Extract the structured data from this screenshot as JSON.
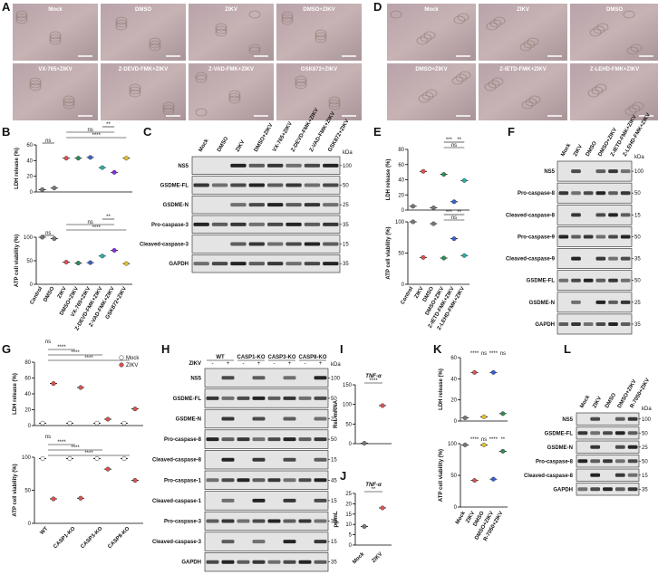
{
  "letters": [
    "A",
    "B",
    "C",
    "D",
    "E",
    "F",
    "G",
    "H",
    "I",
    "J",
    "K",
    "L"
  ],
  "images": {
    "A": [
      "Mock",
      "DMSO",
      "ZIKV",
      "DMSO+ZIKV",
      "VX-765+ZIKV",
      "Z-DEVD-FMK+ZIKV",
      "Z-VAD-FMK+ZIKV",
      "GSK872+ZIKV"
    ],
    "D": [
      "Mock",
      "ZIKV",
      "DMSO",
      "DMSO+ZIKV",
      "Z-IETD-FMK+ZIKV",
      "Z-LEHD-FMK+ZIKV"
    ]
  },
  "chart_data": [
    {
      "type": "dot",
      "categories": [
        "Control",
        "DMSO",
        "ZIKV",
        "DMSO+ZIKV",
        "VX-765+ZIKV",
        "Z-DEVD-FMK+ZIKV",
        "Z-VAD-FMK+ZIKV",
        "GSK872+ZIKV"
      ],
      "colors": [
        "#777777",
        "#777777",
        "#d9534f",
        "#2e8b57",
        "#3a5fcd",
        "#20b2aa",
        "#8a2be2",
        "#e6c229"
      ],
      "subplots": [
        {
          "ylabel": "LDH release (%)",
          "ylim": [
            0,
            60
          ],
          "yticks": [
            0,
            20,
            40,
            60
          ],
          "values": [
            3,
            5,
            43,
            43,
            44,
            31,
            25,
            43
          ],
          "annotations": [
            "ns",
            "****",
            "ns",
            "**"
          ]
        },
        {
          "ylabel": "ATP cell viability (%)",
          "ylim": [
            0,
            100
          ],
          "yticks": [
            0,
            50,
            100
          ],
          "values": [
            100,
            97,
            47,
            45,
            46,
            60,
            72,
            44
          ],
          "annotations": [
            "ns",
            "****",
            "ns",
            "**"
          ]
        }
      ]
    },
    {
      "type": "dot",
      "categories": [
        "Control",
        "ZIKV",
        "DMSO",
        "DMSO+ZIKV",
        "Z-IETD-FMK+ZIKV",
        "Z-LEHD-FMK+ZIKV"
      ],
      "colors": [
        "#777777",
        "#d9534f",
        "#777777",
        "#2e8b57",
        "#3a5fcd",
        "#20b2aa"
      ],
      "subplots": [
        {
          "ylabel": "LDH release (%)",
          "ylim": [
            0,
            80
          ],
          "yticks": [
            0,
            20,
            40,
            60,
            80
          ],
          "values": [
            5,
            51,
            3,
            47,
            11,
            39
          ],
          "annotations": [
            "ns",
            "***",
            "**"
          ]
        },
        {
          "ylabel": "ATP cell viability (%)",
          "ylim": [
            0,
            100
          ],
          "yticks": [
            0,
            50,
            100
          ],
          "values": [
            100,
            43,
            97,
            42,
            73,
            46
          ],
          "annotations": [
            "ns",
            "***",
            "**"
          ]
        }
      ]
    },
    {
      "type": "grouped-dot",
      "categories": [
        "WT",
        "CASP1-KO",
        "CASP3-KO",
        "CASP8-KO"
      ],
      "legend": "top-right",
      "subplots": [
        {
          "ylabel": "LDH release (%)",
          "ylim": [
            0,
            80
          ],
          "yticks": [
            0,
            20,
            40,
            60,
            80
          ],
          "series": [
            {
              "name": "Mock",
              "color": "#ffffff",
              "values": [
                3,
                3,
                3,
                3
              ]
            },
            {
              "name": "ZIKV",
              "color": "#d9534f",
              "values": [
                53,
                48,
                8,
                21
              ]
            }
          ],
          "annotations": [
            "ns",
            "****",
            "****",
            "****"
          ]
        },
        {
          "ylabel": "ATP cell viability (%)",
          "ylim": [
            0,
            100
          ],
          "yticks": [
            0,
            50,
            100
          ],
          "series": [
            {
              "name": "Mock",
              "color": "#ffffff",
              "values": [
                98,
                98,
                98,
                98
              ]
            },
            {
              "name": "ZIKV",
              "color": "#d9534f",
              "values": [
                37,
                38,
                82,
                65
              ]
            }
          ],
          "annotations": [
            "ns",
            "****",
            "****",
            "****"
          ]
        }
      ]
    },
    {
      "type": "dot",
      "categories": [
        "Mock",
        "ZIKV"
      ],
      "colors": [
        "#777777",
        "#d9534f"
      ],
      "subplots": [
        {
          "title": "TNF-α",
          "ylabel": "Rel. mRNA",
          "ylim": [
            0,
            150
          ],
          "yticks": [
            0,
            50,
            100,
            150
          ],
          "values": [
            1,
            97
          ],
          "annotations": [
            "****"
          ]
        },
        {
          "title": "TNF-α",
          "ylabel": "pg/mL",
          "ylim": [
            0,
            25
          ],
          "yticks": [
            0,
            5,
            10,
            15,
            20,
            25
          ],
          "values": [
            9,
            18
          ],
          "annotations": [
            "**"
          ]
        }
      ]
    },
    {
      "type": "dot",
      "categories": [
        "Mock",
        "ZIKV",
        "DMSO",
        "DMSO+ZIKV",
        "R-7050+ZIKV"
      ],
      "colors": [
        "#777777",
        "#d9534f",
        "#e6c229",
        "#3a5fcd",
        "#2e8b57"
      ],
      "subplots": [
        {
          "ylabel": "LDH release (%)",
          "ylim": [
            0,
            60
          ],
          "yticks": [
            0,
            20,
            40,
            60
          ],
          "values": [
            3,
            46,
            4,
            46,
            7
          ],
          "annotations": [
            "****",
            "ns",
            "****",
            "ns"
          ]
        },
        {
          "ylabel": "ATP cell viability (%)",
          "ylim": [
            0,
            100
          ],
          "yticks": [
            0,
            50,
            100
          ],
          "values": [
            98,
            42,
            98,
            44,
            88
          ],
          "annotations": [
            "****",
            "ns",
            "****",
            "**"
          ]
        }
      ]
    }
  ],
  "blots": {
    "C": {
      "kda": "kDa",
      "lanes": [
        "Mock",
        "DMSO",
        "ZIKV",
        "DMSO+ZIKV",
        "VX-765+ZIKV",
        "Z-DEVD-FMK+ZIKV",
        "Z-VAD-FMK+ZIKV",
        "GSK872+ZIKV"
      ],
      "rows": [
        "NS5",
        "GSDME-FL",
        "GSDME-N",
        "Pro-caspase-3",
        "Cleaved-caspase-3",
        "GAPDH"
      ],
      "markers": [
        "100",
        "50",
        "25",
        "35",
        "15",
        "35"
      ]
    },
    "F": {
      "kda": "kDa",
      "lanes": [
        "Mock",
        "ZIKV",
        "DMSO",
        "DMSO+ZIKV",
        "Z-IETD-FMK+ZIKV",
        "Z-LEHD-FMK+ZIKV"
      ],
      "rows": [
        "NS5",
        "Pro-caspase-8",
        "Cleaved-caspase-8",
        "Pro-caspase-9",
        "Cleaved-caspase-9",
        "GSDME-FL",
        "GSDME-N",
        "GAPDH"
      ],
      "markers": [
        "100",
        "50",
        "15",
        "50",
        "35",
        "50",
        "25",
        "35"
      ]
    },
    "H": {
      "kda": "kDa",
      "groups": [
        "WT",
        "CASP1-KO",
        "CASP3-KO",
        "CASP8-KO"
      ],
      "treatment": "ZIKV",
      "lanes": [
        "-",
        "+",
        "-",
        "+",
        "-",
        "+",
        "-",
        "+"
      ],
      "rows": [
        "NS5",
        "GSDME-FL",
        "GSDME-N",
        "Pro-caspase-8",
        "Cleaved-caspase-8",
        "Pro-caspase-1",
        "Cleaved-caspase-1",
        "Pro-caspase-3",
        "Cleaved-caspase-3",
        "GAPDH"
      ],
      "markers": [
        "100",
        "50",
        "25",
        "50",
        "15",
        "45",
        "15",
        "35",
        "15",
        "35"
      ]
    },
    "L": {
      "kda": "kDa",
      "lanes": [
        "Mock",
        "ZIKV",
        "DMSO",
        "DMSO+ZIKV",
        "R-7050+ZIKV"
      ],
      "rows": [
        "NS5",
        "GSDME-FL",
        "GSDME-N",
        "Pro-caspase-8",
        "Cleaved-caspase-8",
        "GAPDH"
      ],
      "markers": [
        "100",
        "50",
        "25",
        "50",
        "15",
        "35"
      ]
    }
  }
}
